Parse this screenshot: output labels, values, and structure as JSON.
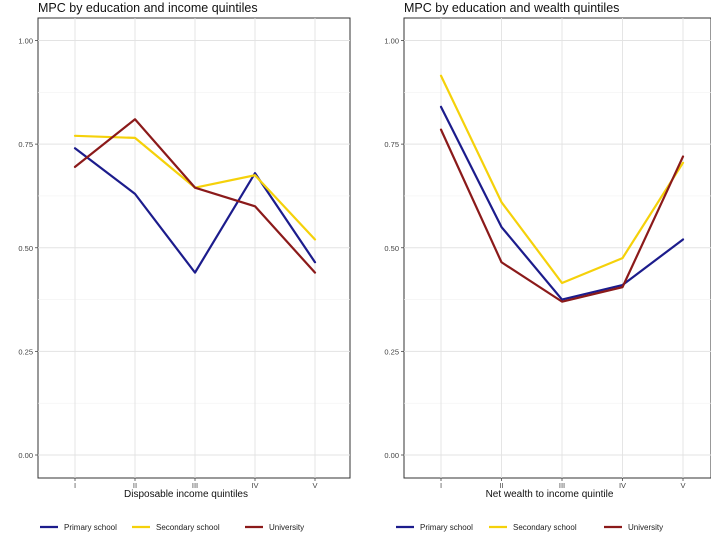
{
  "chart_data": [
    {
      "type": "line",
      "title": "MPC by education and income quintiles",
      "xlabel": "Disposable income quintiles",
      "ylabel": "",
      "categories": [
        "I",
        "II",
        "III",
        "IV",
        "V"
      ],
      "ylim": [
        0,
        1
      ],
      "yticks": [
        "0.00",
        "0.25",
        "0.50",
        "0.75",
        "1.00"
      ],
      "grid": true,
      "legend_position": "bottom",
      "series": [
        {
          "name": "Primary school",
          "color": "#1c1c8c",
          "values": [
            0.74,
            0.63,
            0.44,
            0.68,
            0.465
          ]
        },
        {
          "name": "Secondary school",
          "color": "#f5d10a",
          "values": [
            0.77,
            0.765,
            0.645,
            0.675,
            0.52
          ]
        },
        {
          "name": "University",
          "color": "#8b1a1a",
          "values": [
            0.695,
            0.81,
            0.645,
            0.6,
            0.44
          ]
        }
      ]
    },
    {
      "type": "line",
      "title": "MPC by education and wealth quintiles",
      "xlabel": "Net wealth to income quintile",
      "ylabel": "",
      "categories": [
        "I",
        "II",
        "III",
        "IV",
        "V"
      ],
      "ylim": [
        0,
        1
      ],
      "yticks": [
        "0.00",
        "0.25",
        "0.50",
        "0.75",
        "1.00"
      ],
      "grid": true,
      "legend_position": "bottom",
      "series": [
        {
          "name": "Primary school",
          "color": "#1c1c8c",
          "values": [
            0.84,
            0.55,
            0.375,
            0.41,
            0.52
          ]
        },
        {
          "name": "Secondary school",
          "color": "#f5d10a",
          "values": [
            0.915,
            0.61,
            0.415,
            0.475,
            0.705
          ]
        },
        {
          "name": "University",
          "color": "#8b1a1a",
          "values": [
            0.785,
            0.465,
            0.37,
            0.405,
            0.72
          ]
        }
      ]
    }
  ]
}
